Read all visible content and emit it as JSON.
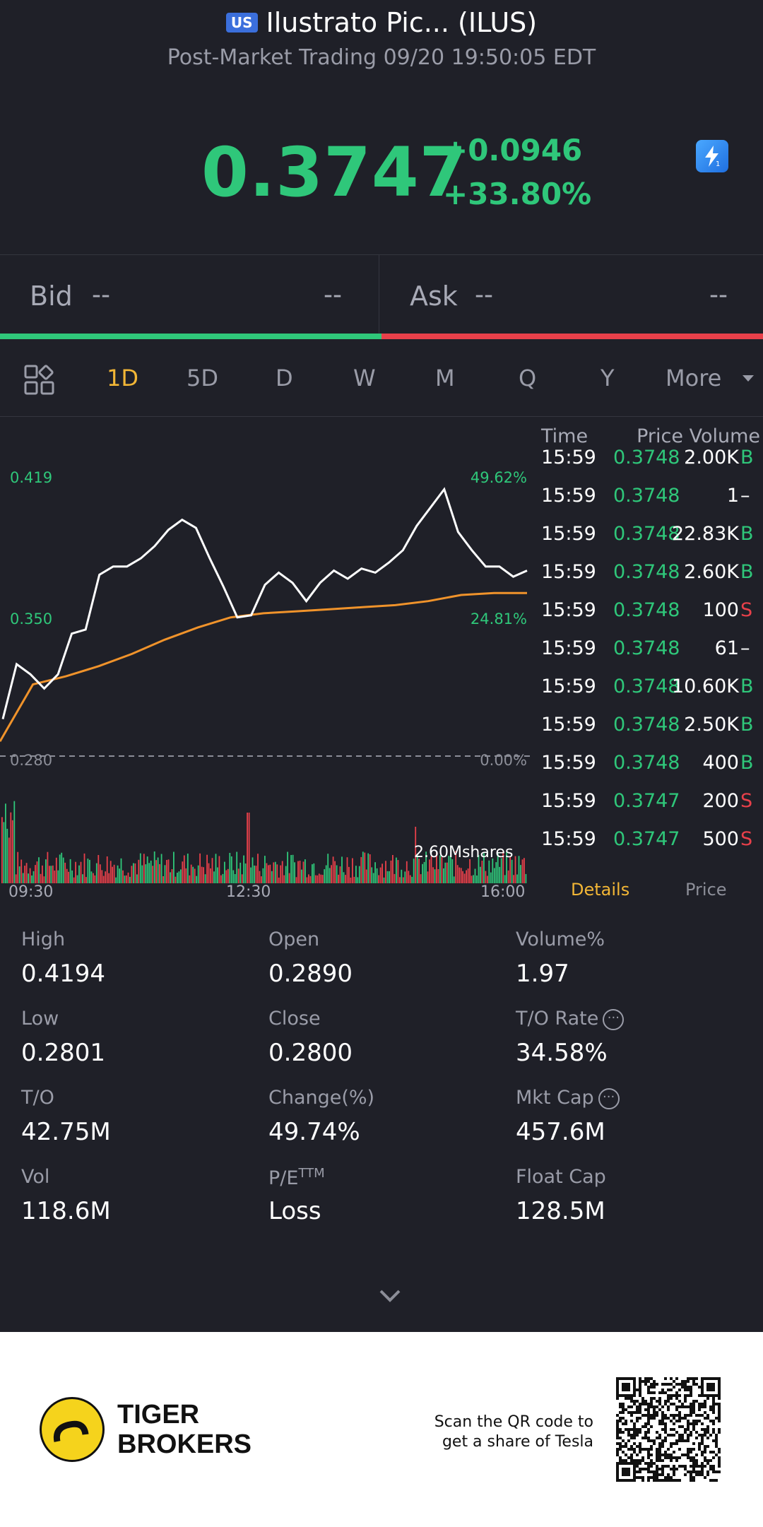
{
  "header": {
    "market_badge": "US",
    "title": "Ilustrato Pic... (ILUS)",
    "subtitle": "Post-Market Trading 09/20 19:50:05 EDT"
  },
  "quote": {
    "price": "0.3747",
    "change": "+0.0946",
    "change_pct": "+33.80%",
    "accent_up": "#2fc77a",
    "accent_down": "#e8404a",
    "flash_icon": "flash-icon"
  },
  "bidask": {
    "bid_label": "Bid",
    "bid_price": "--",
    "bid_size": "--",
    "ask_label": "Ask",
    "ask_price": "--",
    "ask_size": "--"
  },
  "tabs": {
    "grid_icon": "grid-icon",
    "items": [
      "1D",
      "5D",
      "D",
      "W",
      "M",
      "Q",
      "Y",
      "More"
    ],
    "active": "1D"
  },
  "chart": {
    "price_high_label": "0.419",
    "price_mid_label": "0.350",
    "price_low_label": "0.280",
    "pct_high_label": "49.62%",
    "pct_mid_label": "24.81%",
    "pct_low_label": "0.00%",
    "volume_label": "2.60Mshares",
    "time_labels": [
      "09:30",
      "12:30",
      "16:00"
    ]
  },
  "chart_data": {
    "type": "line",
    "x_range": [
      "09:30",
      "16:00"
    ],
    "ylim": [
      0.28,
      0.419
    ],
    "series": [
      {
        "values": [
          0.301,
          0.328,
          0.323,
          0.316,
          0.323,
          0.343,
          0.345,
          0.372,
          0.376,
          0.376,
          0.38,
          0.386,
          0.394,
          0.399,
          0.395,
          0.38,
          0.366,
          0.351,
          0.352,
          0.367,
          0.373,
          0.368,
          0.359,
          0.368,
          0.374,
          0.37,
          0.375,
          0.373,
          0.378,
          0.384,
          0.396,
          0.405,
          0.414,
          0.393,
          0.384,
          0.376,
          0.376,
          0.371,
          0.374
        ]
      },
      {
        "values": [
          0.29,
          0.318,
          0.322,
          0.327,
          0.333,
          0.34,
          0.346,
          0.351,
          0.353,
          0.354,
          0.355,
          0.356,
          0.357,
          0.359,
          0.362,
          0.363,
          0.363
        ]
      }
    ]
  },
  "trades": {
    "headers": {
      "time": "Time",
      "price_volume": "Price Volume"
    },
    "rows": [
      {
        "time": "15:59",
        "price": "0.3748",
        "volume": "2.00K",
        "side": "B"
      },
      {
        "time": "15:59",
        "price": "0.3748",
        "volume": "1",
        "side": "–"
      },
      {
        "time": "15:59",
        "price": "0.3748",
        "volume": "22.83K",
        "side": "B"
      },
      {
        "time": "15:59",
        "price": "0.3748",
        "volume": "2.60K",
        "side": "B"
      },
      {
        "time": "15:59",
        "price": "0.3748",
        "volume": "100",
        "side": "S"
      },
      {
        "time": "15:59",
        "price": "0.3748",
        "volume": "61",
        "side": "–"
      },
      {
        "time": "15:59",
        "price": "0.3748",
        "volume": "10.60K",
        "side": "B"
      },
      {
        "time": "15:59",
        "price": "0.3748",
        "volume": "2.50K",
        "side": "B"
      },
      {
        "time": "15:59",
        "price": "0.3748",
        "volume": "400",
        "side": "B"
      },
      {
        "time": "15:59",
        "price": "0.3747",
        "volume": "200",
        "side": "S"
      },
      {
        "time": "15:59",
        "price": "0.3747",
        "volume": "500",
        "side": "S"
      }
    ],
    "tab_details": "Details",
    "tab_price": "Price"
  },
  "stats": {
    "high_label": "High",
    "high": "0.4194",
    "open_label": "Open",
    "open": "0.2890",
    "volpct_label": "Volume%",
    "volpct": "1.97",
    "low_label": "Low",
    "low": "0.2801",
    "close_label": "Close",
    "close": "0.2800",
    "torate_label": "T/O Rate",
    "torate": "34.58%",
    "to_label": "T/O",
    "to": "42.75M",
    "chgpct_label": "Change(%)",
    "chgpct": "49.74%",
    "mktcap_label": "Mkt Cap",
    "mktcap": "457.6M",
    "vol_label": "Vol",
    "vol": "118.6M",
    "pe_label": "P/E",
    "pe_sup": "TTM",
    "pe": "Loss",
    "floatcap_label": "Float Cap",
    "floatcap": "128.5M",
    "info_icon": "info-icon",
    "expand_icon": "chevron-down-icon"
  },
  "footer": {
    "brand_line1": "TIGER",
    "brand_line2": "BROKERS",
    "scan_line1": "Scan the QR code to",
    "scan_line2": "get a share of Tesla",
    "logo_icon": "tiger-logo-icon",
    "qr_icon": "qr-code-icon"
  }
}
